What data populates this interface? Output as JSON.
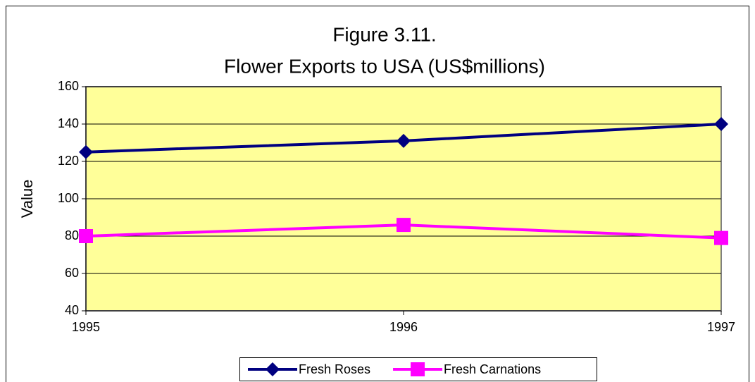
{
  "chart_data": {
    "type": "line",
    "title": [
      "Figure 3.11.",
      "Flower Exports to USA (US$millions)"
    ],
    "y_label": "Value",
    "x": [
      1995,
      1996,
      1997
    ],
    "xlim": [
      1995,
      1997
    ],
    "xticks": [
      1995,
      1996,
      1997
    ],
    "ylim": [
      40,
      160
    ],
    "yticks": [
      40,
      60,
      80,
      100,
      120,
      140,
      160
    ],
    "grid": true,
    "legend": "bottom",
    "background": "#ffff99",
    "series": [
      {
        "name": "Fresh Roses",
        "color": "#000080",
        "marker": "diamond",
        "values": [
          125,
          131,
          140
        ]
      },
      {
        "name": "Fresh Carnations",
        "color": "#ff00ff",
        "marker": "square",
        "values": [
          80,
          86,
          79
        ]
      }
    ]
  }
}
